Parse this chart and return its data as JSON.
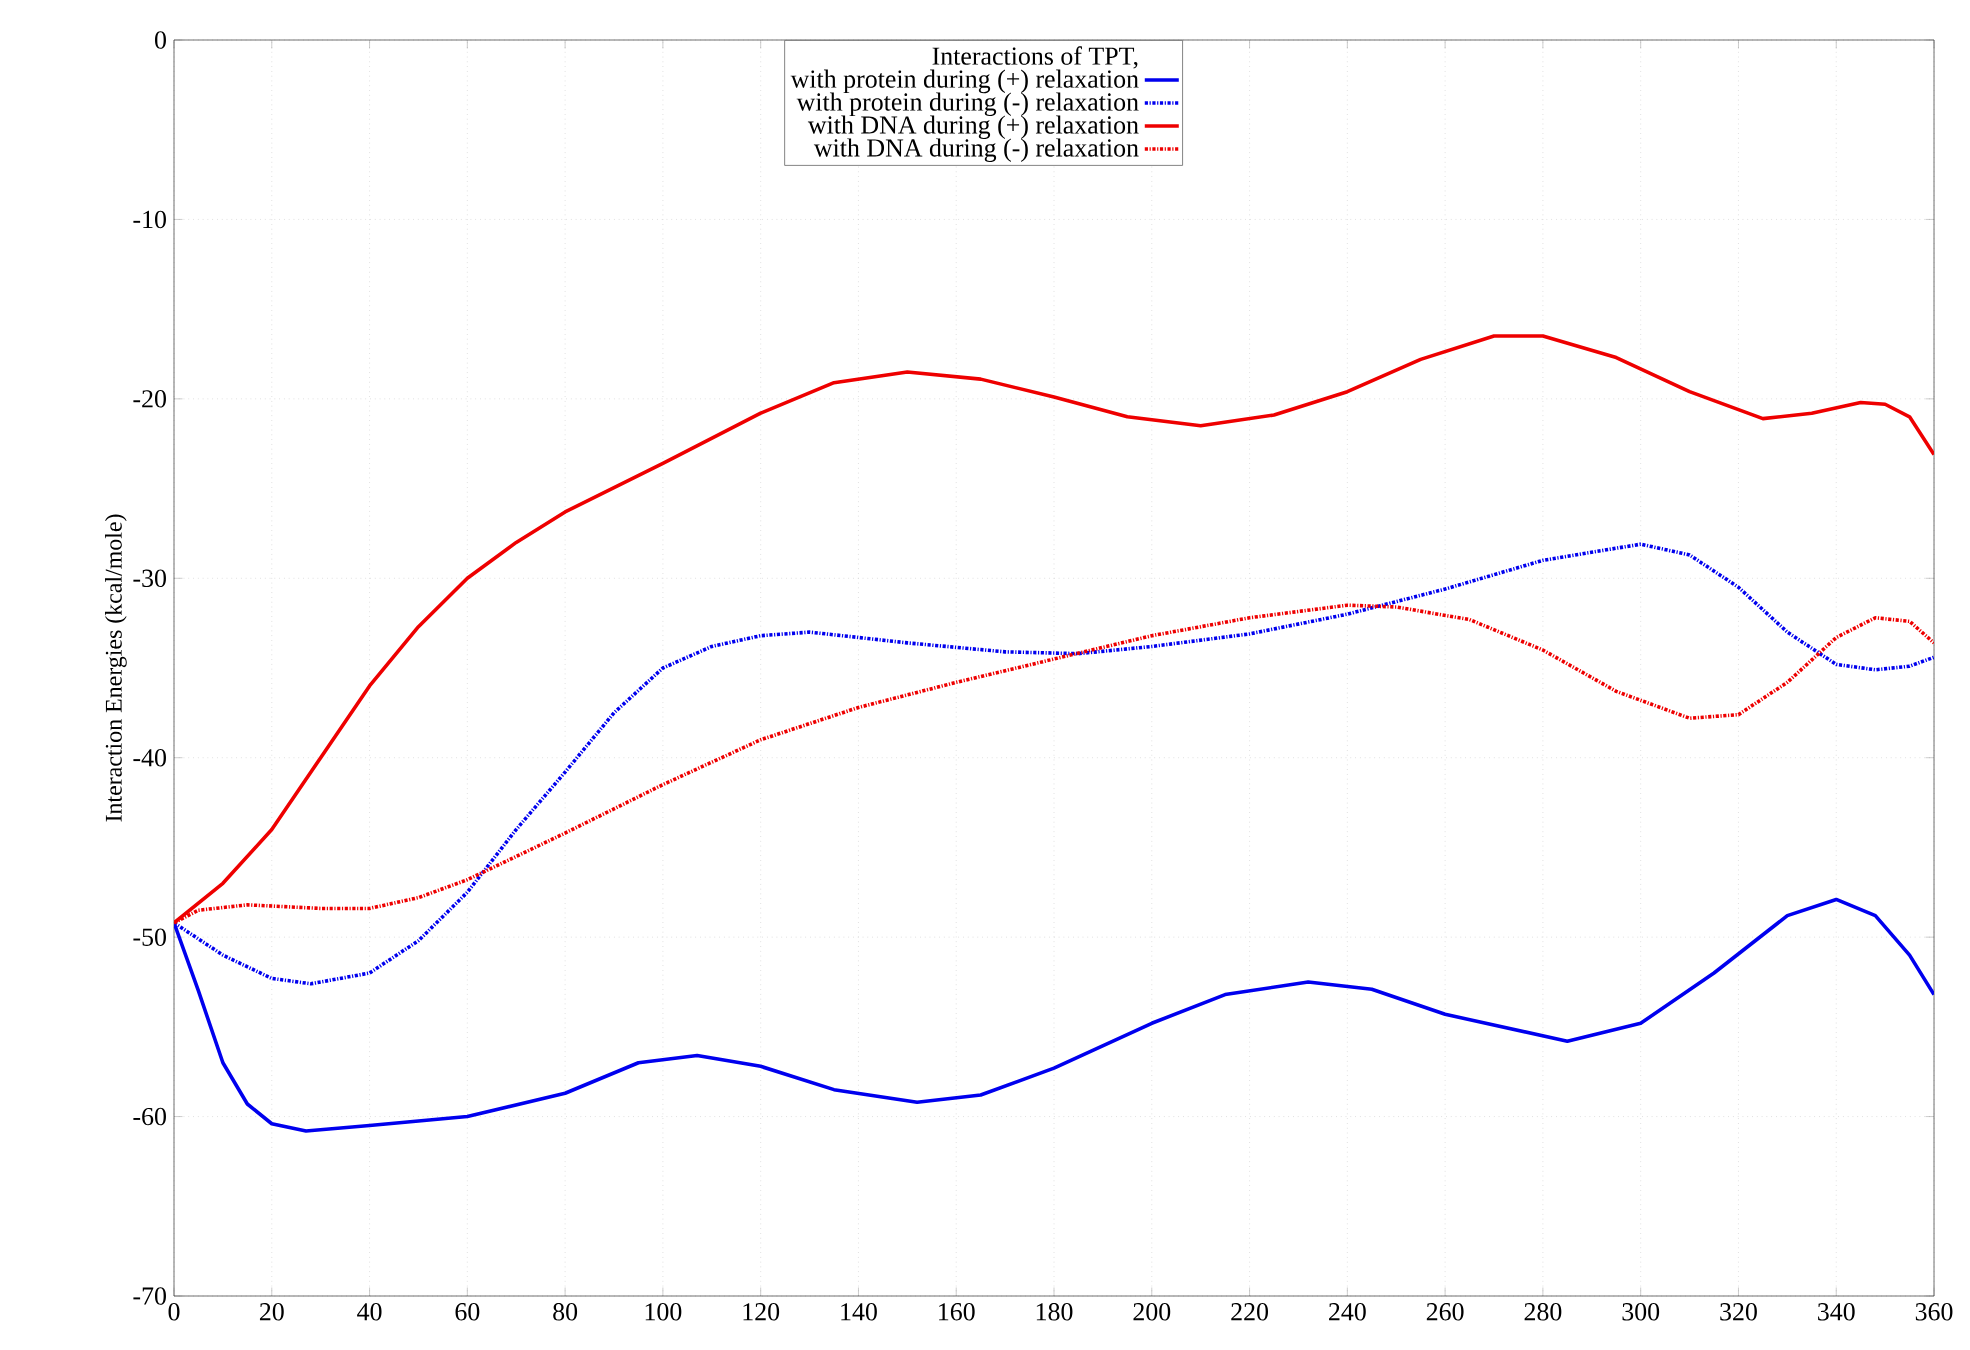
{
  "chart_data": {
    "type": "line",
    "ylabel": "Interaction Energies (kcal/mole)",
    "legend_title": "Interactions of TPT,",
    "xlim": [
      0,
      360
    ],
    "ylim": [
      -70,
      0
    ],
    "xticks": [
      0,
      20,
      40,
      60,
      80,
      100,
      120,
      140,
      160,
      180,
      200,
      220,
      240,
      260,
      280,
      300,
      320,
      340,
      360
    ],
    "yticks": [
      -70,
      -60,
      -50,
      -40,
      -30,
      -20,
      -10,
      0
    ],
    "grid": true,
    "legend": "top",
    "marker": "none",
    "series": [
      {
        "name": "with protein during (+) relaxation",
        "color": "#0000ee",
        "line_style": "solid",
        "x": [
          0,
          5,
          10,
          15,
          20,
          27,
          40,
          60,
          80,
          95,
          107,
          120,
          135,
          152,
          165,
          180,
          200,
          215,
          232,
          245,
          260,
          285,
          300,
          315,
          330,
          340,
          348,
          355,
          360
        ],
        "values": [
          -49.2,
          -53,
          -57,
          -59.3,
          -60.4,
          -60.8,
          -60.5,
          -60,
          -58.7,
          -57,
          -56.6,
          -57.2,
          -58.5,
          -59.2,
          -58.8,
          -57.3,
          -54.8,
          -53.2,
          -52.5,
          -52.9,
          -54.3,
          -55.8,
          -54.8,
          -52,
          -48.8,
          -47.9,
          -48.8,
          -51,
          -53.2
        ]
      },
      {
        "name": "with protein during (-) relaxation",
        "color": "#0000ee",
        "line_style": "dotted",
        "x": [
          0,
          10,
          20,
          28,
          40,
          50,
          60,
          70,
          80,
          90,
          100,
          110,
          120,
          130,
          150,
          170,
          185,
          200,
          220,
          240,
          260,
          280,
          300,
          310,
          320,
          330,
          340,
          348,
          355,
          360
        ],
        "values": [
          -49.2,
          -51,
          -52.3,
          -52.6,
          -52,
          -50.2,
          -47.5,
          -44,
          -40.8,
          -37.5,
          -35,
          -33.8,
          -33.2,
          -33,
          -33.6,
          -34.1,
          -34.2,
          -33.8,
          -33.1,
          -32,
          -30.6,
          -29,
          -28.1,
          -28.7,
          -30.5,
          -33,
          -34.8,
          -35.1,
          -34.9,
          -34.4
        ]
      },
      {
        "name": "with DNA during (+) relaxation",
        "color": "#ee0000",
        "line_style": "solid",
        "x": [
          0,
          10,
          20,
          30,
          40,
          50,
          60,
          70,
          80,
          100,
          120,
          135,
          150,
          165,
          180,
          195,
          210,
          225,
          240,
          255,
          270,
          280,
          295,
          310,
          325,
          335,
          345,
          350,
          355,
          360
        ],
        "values": [
          -49.2,
          -47,
          -44,
          -40,
          -36,
          -32.7,
          -30,
          -28,
          -26.3,
          -23.6,
          -20.8,
          -19.1,
          -18.5,
          -18.9,
          -19.9,
          -21,
          -21.5,
          -20.9,
          -19.6,
          -17.8,
          -16.5,
          -16.5,
          -17.7,
          -19.6,
          -21.1,
          -20.8,
          -20.2,
          -20.3,
          -21,
          -23.1
        ]
      },
      {
        "name": "with DNA during (-) relaxation",
        "color": "#ee0000",
        "line_style": "dotted",
        "x": [
          0,
          5,
          15,
          30,
          40,
          50,
          60,
          80,
          100,
          120,
          140,
          160,
          180,
          200,
          220,
          240,
          250,
          265,
          280,
          295,
          310,
          320,
          330,
          340,
          348,
          355,
          360
        ],
        "values": [
          -49.2,
          -48.5,
          -48.2,
          -48.4,
          -48.4,
          -47.8,
          -46.8,
          -44.2,
          -41.5,
          -39,
          -37.2,
          -35.8,
          -34.5,
          -33.2,
          -32.2,
          -31.5,
          -31.6,
          -32.3,
          -34,
          -36.3,
          -37.8,
          -37.6,
          -35.8,
          -33.3,
          -32.2,
          -32.4,
          -33.6
        ]
      }
    ]
  }
}
